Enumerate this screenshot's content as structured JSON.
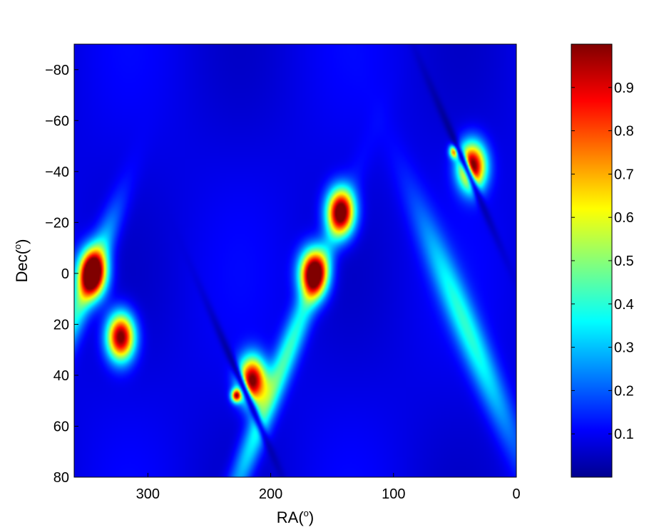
{
  "chart_data": {
    "type": "heatmap",
    "xlabel": "RA(",
    "xlabel_sup": "o",
    "xlabel_close": ")",
    "ylabel": "Dec(",
    "ylabel_sup": "o",
    "ylabel_close": ")",
    "xlim": [
      360,
      0
    ],
    "ylim": [
      -90,
      80
    ],
    "x_reversed": true,
    "y_reversed": true,
    "x_ticks": [
      300,
      200,
      100,
      0
    ],
    "x_tick_labels": [
      "300",
      "200",
      "100",
      "0"
    ],
    "y_ticks": [
      -80,
      -60,
      -40,
      -20,
      0,
      20,
      40,
      60,
      80
    ],
    "y_tick_labels": [
      "−80",
      "−60",
      "−40",
      "−20",
      "0",
      "20",
      "40",
      "60",
      "80"
    ],
    "colormap": "jet",
    "colorbar": {
      "range": [
        0,
        1
      ],
      "ticks": [
        0.1,
        0.2,
        0.3,
        0.4,
        0.5,
        0.6,
        0.7,
        0.8,
        0.9
      ],
      "tick_labels": [
        "0.1",
        "0.2",
        "0.3",
        "0.4",
        "0.5",
        "0.6",
        "0.7",
        "0.8",
        "0.9"
      ]
    },
    "peaks": [
      {
        "ra": 345,
        "dec": 0,
        "value": 1.0
      },
      {
        "ra": 322,
        "dec": 25,
        "value": 0.95
      },
      {
        "ra": 165,
        "dec": 0,
        "value": 1.0
      },
      {
        "ra": 143,
        "dec": -24,
        "value": 0.97
      },
      {
        "ra": 215,
        "dec": 42,
        "value": 0.92
      },
      {
        "ra": 228,
        "dec": 48,
        "value": 0.75
      },
      {
        "ra": 36,
        "dec": -42,
        "value": 0.95
      },
      {
        "ra": 50,
        "dec": -48,
        "value": 0.75
      }
    ]
  }
}
